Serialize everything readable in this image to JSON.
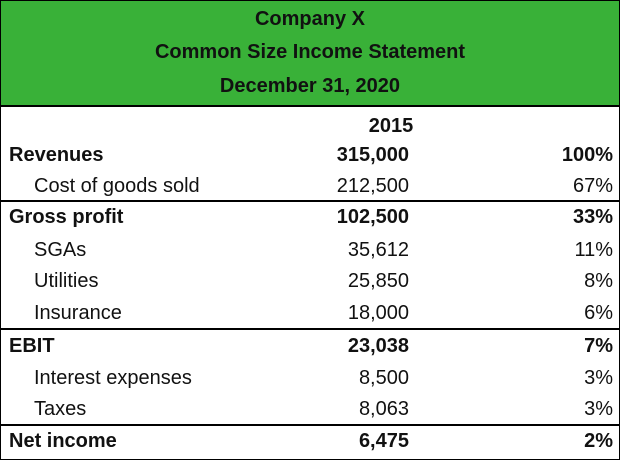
{
  "header": {
    "company": "Company X",
    "statement": "Common Size Income Statement",
    "date": "December 31, 2020"
  },
  "columns": {
    "year": "2015"
  },
  "rows": [
    {
      "label": "Revenues",
      "amount": "315,000",
      "percent": "100%",
      "bold": true,
      "indent": false
    },
    {
      "label": "Cost of goods sold",
      "amount": "212,500",
      "percent": "67%",
      "bold": false,
      "indent": true
    },
    {
      "label": "Gross profit",
      "amount": "102,500",
      "percent": "33%",
      "bold": true,
      "indent": false
    },
    {
      "label": "SGAs",
      "amount": "35,612",
      "percent": "11%",
      "bold": false,
      "indent": true
    },
    {
      "label": "Utilities",
      "amount": "25,850",
      "percent": "8%",
      "bold": false,
      "indent": true
    },
    {
      "label": "Insurance",
      "amount": "18,000",
      "percent": "6%",
      "bold": false,
      "indent": true
    },
    {
      "label": "EBIT",
      "amount": "23,038",
      "percent": "7%",
      "bold": true,
      "indent": false
    },
    {
      "label": "Interest expenses",
      "amount": "8,500",
      "percent": "3%",
      "bold": false,
      "indent": true
    },
    {
      "label": "Taxes",
      "amount": "8,063",
      "percent": "3%",
      "bold": false,
      "indent": true
    },
    {
      "label": "Net income",
      "amount": "6,475",
      "percent": "2%",
      "bold": true,
      "indent": false
    }
  ],
  "colors": {
    "header_background": "#39b138",
    "rules": "#000000"
  }
}
